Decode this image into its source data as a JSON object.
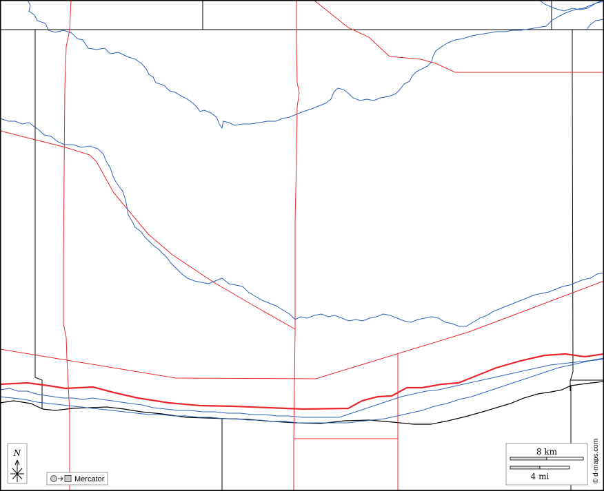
{
  "legend": {
    "north_label": "N",
    "projection_label": "Mercator",
    "scale_km_label": "8 km",
    "scale_mi_label": "4 mi"
  },
  "credit": "© d-maps.com",
  "colors": {
    "road": "#e8262b",
    "river": "#2f5fb8",
    "border": "#000000",
    "background": "#ffffff"
  }
}
